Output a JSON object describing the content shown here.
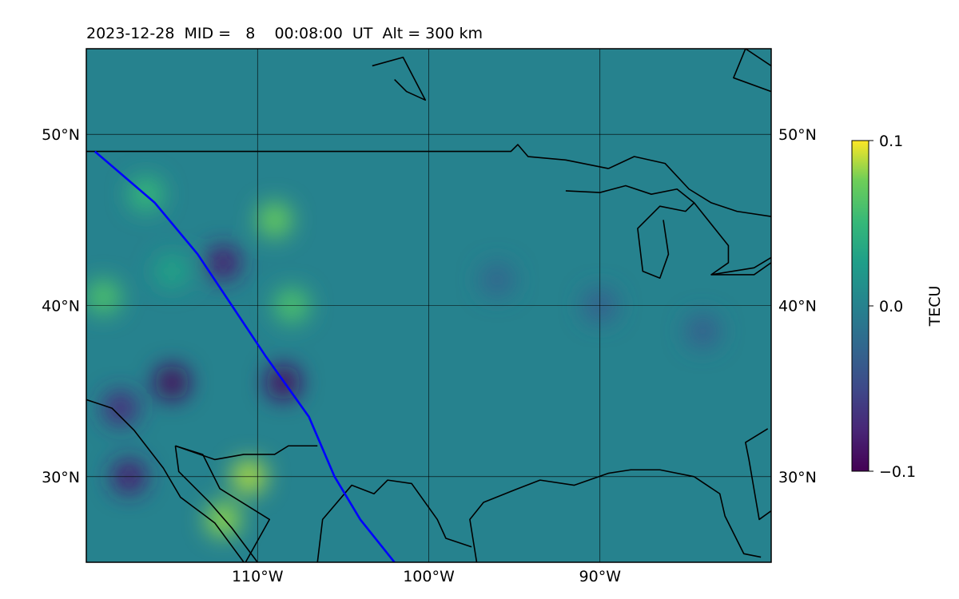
{
  "chart_data": {
    "type": "heatmap",
    "title": "2023-12-28  MID =   8    00:08:00  UT  Alt = 300 km",
    "map": {
      "lon_range": [
        -120,
        -80
      ],
      "lat_range": [
        25,
        55
      ],
      "lon_ticks": [
        -110,
        -100,
        -90
      ],
      "lon_tick_labels": [
        "110°W",
        "100°W",
        "90°W"
      ],
      "lat_ticks": [
        30,
        40,
        50
      ],
      "lat_tick_labels_left": [
        "30°N",
        "40°N",
        "50°N"
      ],
      "lat_tick_labels_right": [
        "30°N",
        "40°N",
        "50°N"
      ],
      "grid": true
    },
    "colorbar": {
      "label": "TECU",
      "min": -0.1,
      "max": 0.1,
      "ticks": [
        0.1,
        0.0,
        -0.1
      ],
      "tick_labels": [
        "0.1",
        "0.0",
        "−0.1"
      ],
      "colormap": "viridis"
    },
    "background_value": 0.0,
    "anomalies": [
      {
        "lon": -116.5,
        "lat": 46.5,
        "value": 0.05
      },
      {
        "lon": -115.0,
        "lat": 42.0,
        "value": 0.03
      },
      {
        "lon": -119.0,
        "lat": 40.5,
        "value": 0.06
      },
      {
        "lon": -109.0,
        "lat": 45.0,
        "value": 0.07
      },
      {
        "lon": -108.0,
        "lat": 40.0,
        "value": 0.06
      },
      {
        "lon": -110.5,
        "lat": 30.0,
        "value": 0.085
      },
      {
        "lon": -112.0,
        "lat": 27.5,
        "value": 0.08
      },
      {
        "lon": -117.5,
        "lat": 30.0,
        "value": -0.08
      },
      {
        "lon": -118.0,
        "lat": 34.0,
        "value": -0.07
      },
      {
        "lon": -115.0,
        "lat": 35.5,
        "value": -0.095
      },
      {
        "lon": -108.5,
        "lat": 35.5,
        "value": -0.09
      },
      {
        "lon": -112.0,
        "lat": 42.5,
        "value": -0.08
      },
      {
        "lon": -96.0,
        "lat": 41.5,
        "value": -0.025
      },
      {
        "lon": -90.0,
        "lat": 40.0,
        "value": -0.03
      },
      {
        "lon": -84.0,
        "lat": 38.5,
        "value": -0.03
      }
    ],
    "track": {
      "color": "#0000ff",
      "lonlat": [
        [
          -119.5,
          49.0
        ],
        [
          -116.0,
          46.0
        ],
        [
          -113.5,
          43.0
        ],
        [
          -111.5,
          40.0
        ],
        [
          -109.5,
          37.0
        ],
        [
          -107.0,
          33.5
        ],
        [
          -105.5,
          30.0
        ],
        [
          -104.0,
          27.5
        ],
        [
          -102.0,
          25.0
        ]
      ]
    },
    "coastlines": [
      [
        [
          -120,
          49
        ],
        [
          -95.2,
          49
        ],
        [
          -94.8,
          49.4
        ],
        [
          -94.2,
          48.7
        ],
        [
          -92,
          48.5
        ],
        [
          -89.5,
          48
        ]
      ],
      [
        [
          -106.5,
          25
        ],
        [
          -106.2,
          27.5
        ],
        [
          -104.5,
          29.5
        ],
        [
          -103.2,
          29
        ],
        [
          -102.4,
          29.8
        ],
        [
          -101,
          29.6
        ],
        [
          -99.5,
          27.5
        ],
        [
          -99,
          26.4
        ],
        [
          -97.5,
          25.9
        ]
      ],
      [
        [
          -120,
          34.5
        ],
        [
          -118.5,
          34.0
        ],
        [
          -117.2,
          32.7
        ],
        [
          -115.5,
          30.5
        ],
        [
          -114.5,
          28.8
        ],
        [
          -112.5,
          27.3
        ],
        [
          -110.8,
          25
        ]
      ],
      [
        [
          -114.8,
          31.8
        ],
        [
          -114.6,
          30.3
        ],
        [
          -112.8,
          28.5
        ],
        [
          -111.5,
          27.0
        ],
        [
          -110.0,
          25
        ]
      ],
      [
        [
          -114.8,
          31.8
        ],
        [
          -112.5,
          31.0
        ],
        [
          -110.8,
          31.3
        ],
        [
          -109.0,
          31.3
        ],
        [
          -108.2,
          31.8
        ],
        [
          -106.5,
          31.8
        ]
      ],
      [
        [
          -110.7,
          25
        ],
        [
          -109.3,
          27.5
        ],
        [
          -112.2,
          29.3
        ],
        [
          -113.2,
          31.3
        ],
        [
          -114.8,
          31.8
        ]
      ],
      [
        [
          -97.2,
          25
        ],
        [
          -97.6,
          27.5
        ],
        [
          -96.8,
          28.5
        ],
        [
          -94.8,
          29.3
        ],
        [
          -93.5,
          29.8
        ],
        [
          -91.5,
          29.5
        ],
        [
          -89.5,
          30.2
        ],
        [
          -88.2,
          30.4
        ],
        [
          -86.5,
          30.4
        ],
        [
          -84.5,
          30.0
        ],
        [
          -83.0,
          29.0
        ],
        [
          -82.7,
          27.7
        ],
        [
          -81.6,
          25.5
        ],
        [
          -80.6,
          25.3
        ]
      ],
      [
        [
          -80,
          28
        ],
        [
          -80.7,
          27.5
        ],
        [
          -81.3,
          31
        ],
        [
          -81.5,
          32
        ],
        [
          -80.2,
          32.8
        ]
      ],
      [
        [
          -80,
          54
        ],
        [
          -81.5,
          55
        ],
        [
          -82.2,
          53.3
        ],
        [
          -80,
          52.5
        ]
      ],
      [
        [
          -103.3,
          54
        ],
        [
          -101.5,
          54.5
        ],
        [
          -100.2,
          52.0
        ],
        [
          -101.3,
          52.5
        ],
        [
          -102.0,
          53.2
        ]
      ],
      [
        [
          -89.5,
          48
        ],
        [
          -88.0,
          48.7
        ],
        [
          -86.2,
          48.3
        ],
        [
          -84.8,
          46.8
        ],
        [
          -83.5,
          46.0
        ],
        [
          -82.0,
          45.5
        ],
        [
          -80.0,
          45.2
        ]
      ],
      [
        [
          -92.0,
          46.7
        ],
        [
          -90.0,
          46.6
        ],
        [
          -88.5,
          47.0
        ],
        [
          -87.0,
          46.5
        ],
        [
          -85.5,
          46.8
        ],
        [
          -84.5,
          46.0
        ],
        [
          -85.0,
          45.5
        ],
        [
          -86.5,
          45.8
        ],
        [
          -87.8,
          44.5
        ],
        [
          -87.5,
          42.0
        ],
        [
          -86.5,
          41.6
        ],
        [
          -86.0,
          43.0
        ],
        [
          -86.3,
          45.0
        ]
      ],
      [
        [
          -84.5,
          46.0
        ],
        [
          -82.5,
          43.5
        ],
        [
          -82.5,
          42.5
        ],
        [
          -83.5,
          41.8
        ],
        [
          -81.0,
          41.8
        ],
        [
          -80,
          42.5
        ]
      ],
      [
        [
          -83.5,
          41.8
        ],
        [
          -81.0,
          42.2
        ],
        [
          -80,
          42.8
        ]
      ]
    ]
  }
}
